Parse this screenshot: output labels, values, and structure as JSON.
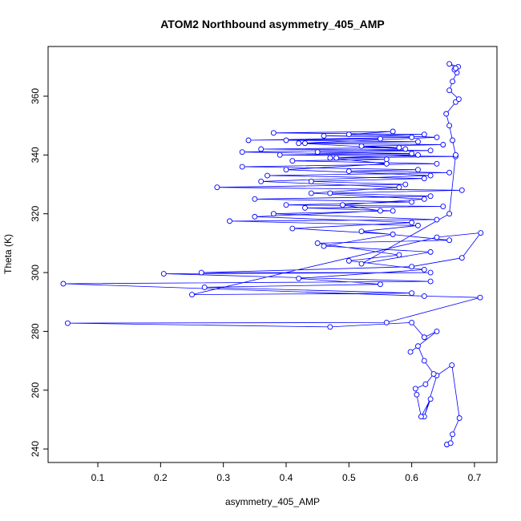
{
  "chart_data": {
    "type": "line",
    "title": "ATOM2 Northbound asymmetry_405_AMP",
    "x_label": "asymmetry_405_AMP",
    "y_label": "Theta (K)",
    "color": "#0000ff",
    "xlim": [
      0.0208,
      0.7358
    ],
    "ylim": [
      235.4,
      376.9
    ],
    "xticks": [
      0.1,
      0.2,
      0.3,
      0.4,
      0.5,
      0.6,
      0.7
    ],
    "yticks": [
      240,
      260,
      280,
      300,
      320,
      340,
      360
    ],
    "x": [
      0.656,
      0.662,
      0.665,
      0.676,
      0.664,
      0.64,
      0.62,
      0.63,
      0.615,
      0.608,
      0.606,
      0.622,
      0.635,
      0.62,
      0.61,
      0.598,
      0.64,
      0.62,
      0.6,
      0.47,
      0.052,
      0.56,
      0.709,
      0.62,
      0.045,
      0.63,
      0.205,
      0.63,
      0.265,
      0.6,
      0.68,
      0.71,
      0.64,
      0.25,
      0.6,
      0.27,
      0.55,
      0.42,
      0.62,
      0.5,
      0.58,
      0.45,
      0.66,
      0.52,
      0.61,
      0.31,
      0.64,
      0.38,
      0.57,
      0.43,
      0.65,
      0.4,
      0.6,
      0.35,
      0.63,
      0.47,
      0.68,
      0.29,
      0.59,
      0.44,
      0.62,
      0.37,
      0.66,
      0.5,
      0.61,
      0.33,
      0.64,
      0.41,
      0.56,
      0.48,
      0.67,
      0.39,
      0.6,
      0.45,
      0.63,
      0.36,
      0.58,
      0.52,
      0.65,
      0.43,
      0.61,
      0.4,
      0.55,
      0.34,
      0.6,
      0.46,
      0.62,
      0.38,
      0.57,
      0.5,
      0.64,
      0.42,
      0.59,
      0.33,
      0.61,
      0.47,
      0.56,
      0.4,
      0.63,
      0.36,
      0.58,
      0.44,
      0.62,
      0.49,
      0.55,
      0.35,
      0.6,
      0.41,
      0.57,
      0.46,
      0.63,
      0.52,
      0.66,
      0.67,
      0.665,
      0.66,
      0.655,
      0.67,
      0.675,
      0.66,
      0.665,
      0.672,
      0.668,
      0.674,
      0.66,
      0.67
    ],
    "series": [
      {
        "color": "#0000ff",
        "values": [
          241.5,
          242,
          245,
          250.5,
          268.5,
          265,
          251,
          257,
          251,
          258.5,
          260.5,
          262,
          265.5,
          270,
          275,
          273,
          280,
          278,
          283,
          281.5,
          282.8,
          283,
          291.5,
          292,
          296.2,
          297,
          299.6,
          300,
          300,
          302,
          305,
          313.5,
          312,
          292.5,
          293,
          295,
          296,
          298,
          301,
          304,
          306,
          310,
          311,
          314,
          316,
          317.5,
          318,
          320,
          321,
          322,
          322.5,
          323,
          324,
          325,
          326,
          327,
          328,
          329,
          330,
          331,
          332,
          333,
          334,
          334.5,
          335,
          336,
          337,
          338,
          338.5,
          339,
          339.5,
          340,
          340.5,
          341,
          341.5,
          342,
          342.5,
          343,
          343.5,
          344,
          344.5,
          345,
          345.5,
          345,
          346,
          346.5,
          347,
          347.5,
          348,
          347,
          346,
          344,
          342,
          341,
          340,
          339,
          337,
          335,
          333,
          331,
          329,
          327,
          325,
          323,
          321,
          319,
          317,
          315,
          313,
          309,
          307,
          303,
          320,
          340,
          345,
          350,
          354,
          358,
          359,
          362,
          365,
          368,
          369,
          370,
          371,
          369.5
        ]
      }
    ]
  }
}
